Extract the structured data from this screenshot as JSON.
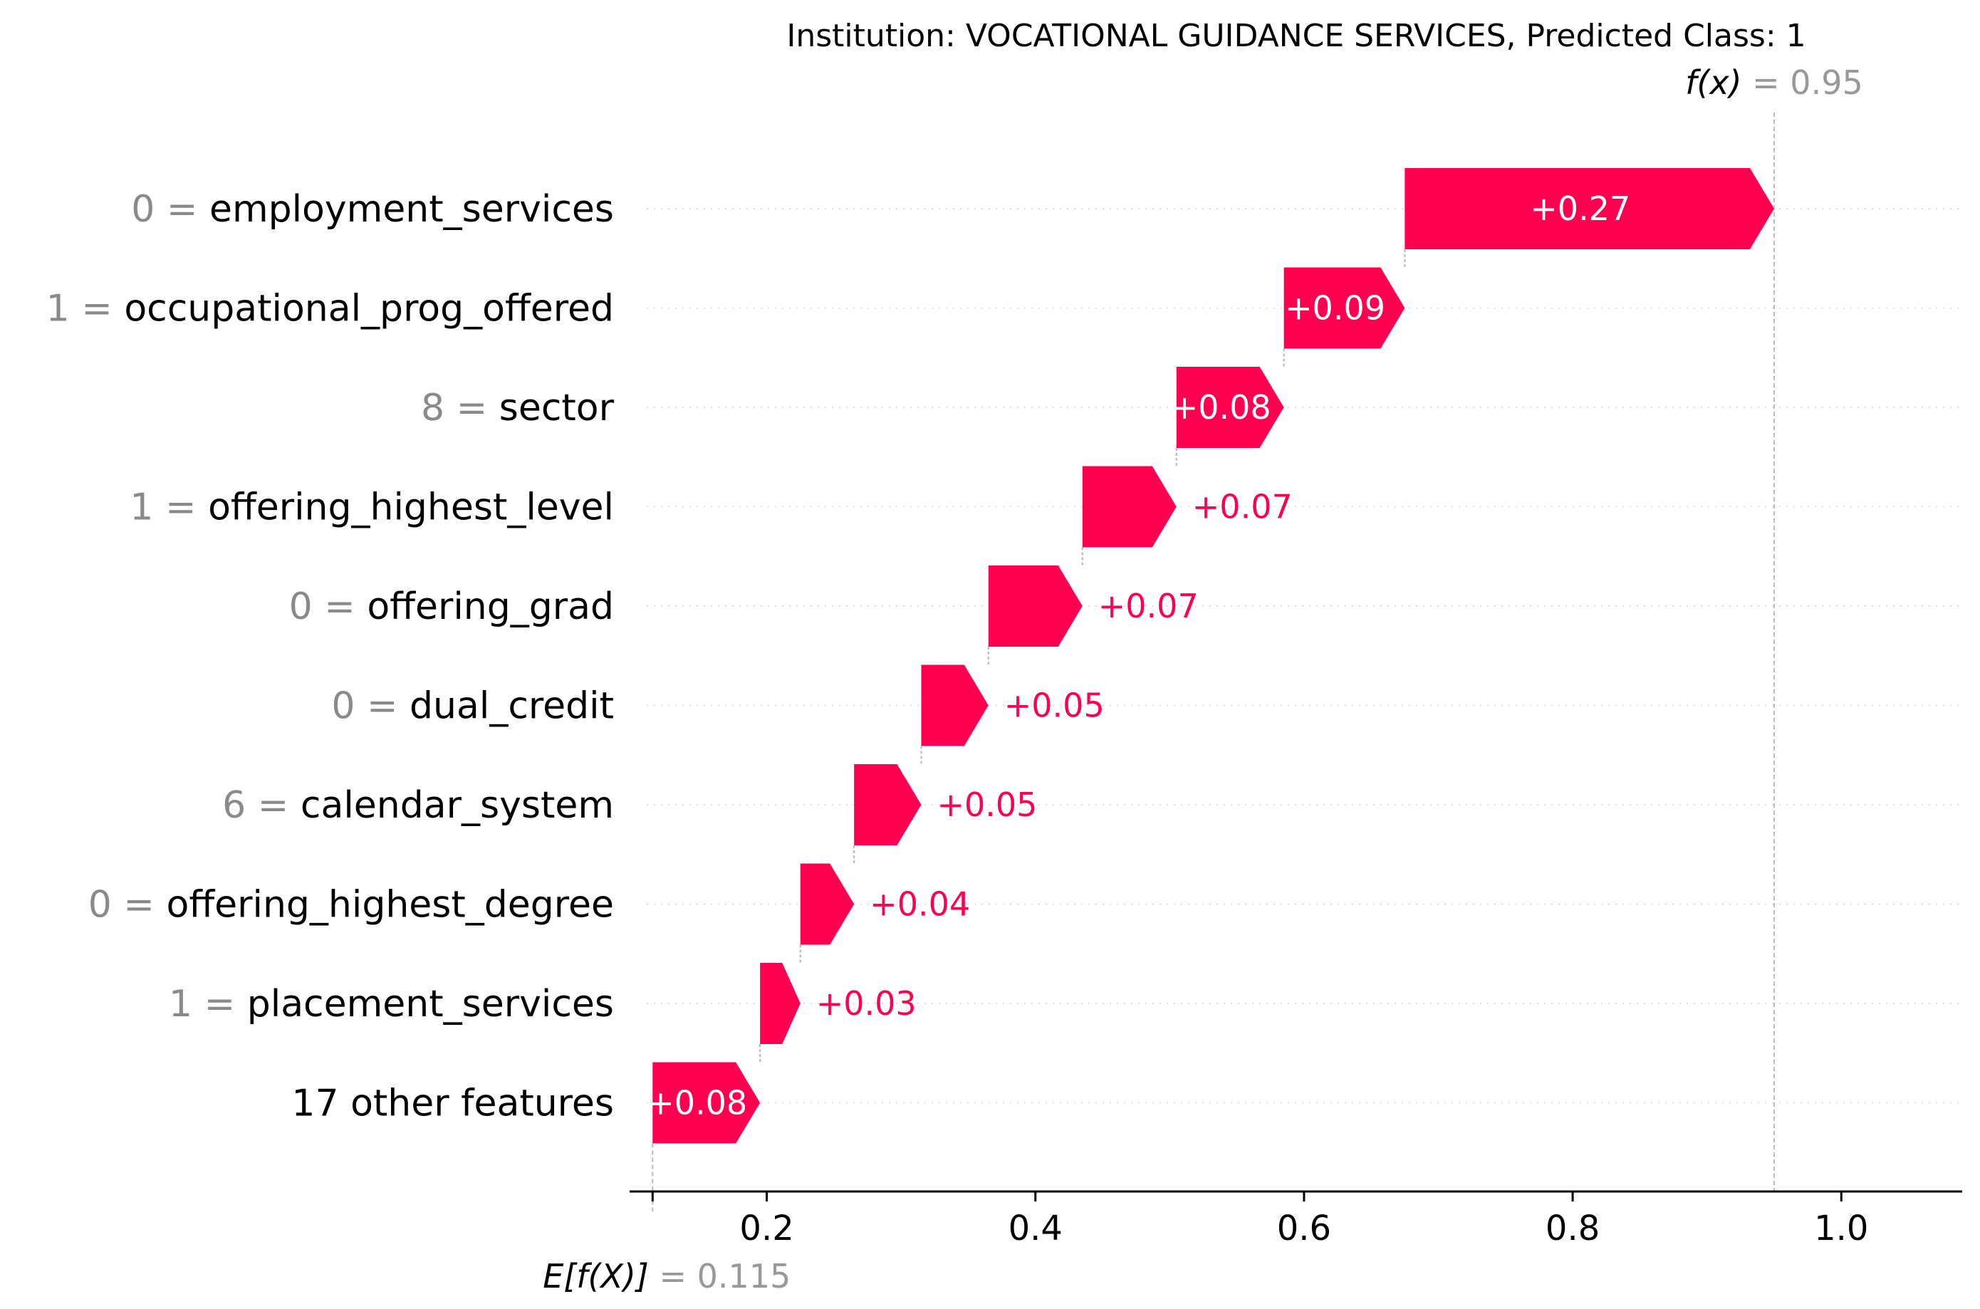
{
  "chart_data": {
    "type": "waterfall",
    "title": "Institution: VOCATIONAL GUIDANCE SERVICES, Predicted Class: 1",
    "base_value": 0.115,
    "base_label": "E[f(X)]",
    "base_value_text": "= 0.115",
    "output_value": 0.95,
    "output_label": "f(x)",
    "output_value_text": "= 0.95",
    "xlim": [
      0.1,
      1.09
    ],
    "xticks": [
      0.2,
      0.4,
      0.6,
      0.8,
      1.0
    ],
    "xtick_labels": [
      "0.2",
      "0.4",
      "0.6",
      "0.8",
      "1.0"
    ],
    "features": [
      {
        "value": "0 =",
        "name": "employment_services",
        "contribution": 0.27,
        "label": "+0.27"
      },
      {
        "value": "1 =",
        "name": "occupational_prog_offered",
        "contribution": 0.09,
        "label": "+0.09"
      },
      {
        "value": "8 =",
        "name": "sector",
        "contribution": 0.08,
        "label": "+0.08"
      },
      {
        "value": "1 =",
        "name": "offering_highest_level",
        "contribution": 0.07,
        "label": "+0.07"
      },
      {
        "value": "0 =",
        "name": "offering_grad",
        "contribution": 0.07,
        "label": "+0.07"
      },
      {
        "value": "0 =",
        "name": "dual_credit",
        "contribution": 0.05,
        "label": "+0.05"
      },
      {
        "value": "6 =",
        "name": "calendar_system",
        "contribution": 0.05,
        "label": "+0.05"
      },
      {
        "value": "0 =",
        "name": "offering_highest_degree",
        "contribution": 0.04,
        "label": "+0.04"
      },
      {
        "value": "1 =",
        "name": "placement_services",
        "contribution": 0.03,
        "label": "+0.03"
      },
      {
        "value": "",
        "name": "17 other features",
        "contribution": 0.08,
        "label": "+0.08"
      }
    ],
    "positive_color": "#ff0051",
    "grid": false
  }
}
